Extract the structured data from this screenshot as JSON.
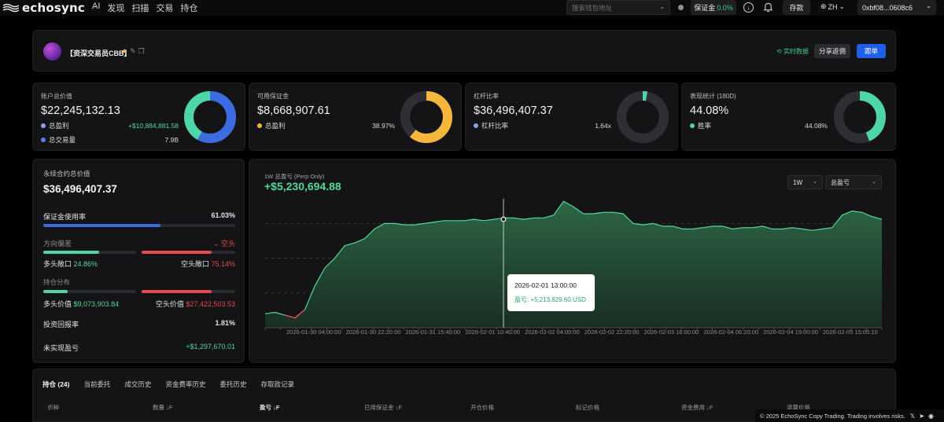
{
  "nav": {
    "brand": "echosync",
    "links": [
      "AI",
      "发现",
      "扫描",
      "交易",
      "持仓"
    ],
    "search_placeholder": "搜索钱包地址",
    "margin_label": "保证金",
    "margin_value": "0.0%",
    "deposit_label": "存款",
    "lang": "ZH",
    "wallet": "0xbf08...0608c6"
  },
  "profile": {
    "name": "【资深交易员CBB】",
    "realtime_label": "实时数据",
    "share_label": "分享返佣",
    "follow_label": "跟单"
  },
  "stats": [
    {
      "label": "账户总价值",
      "value": "$22,245,132.13",
      "rows": [
        {
          "k": "总盈利",
          "v": "+$10,884,881.58",
          "color": "#8ea3f0",
          "vcolor": "#4fd99a"
        },
        {
          "k": "总交易量",
          "v": "7.9B",
          "color": "#5b7cf0",
          "vcolor": "#e3e3e6"
        }
      ],
      "donut": {
        "colors": [
          "#3d6be0",
          "#4fd6a8"
        ],
        "fractions": [
          0.58,
          0.42
        ]
      }
    },
    {
      "label": "可用保证金",
      "value": "$8,668,907.61",
      "rows": [
        {
          "k": "总盈利",
          "v": "38.97%",
          "color": "#f5b73b",
          "vcolor": "#e3e3e6"
        }
      ],
      "donut": {
        "colors": [
          "#f5b73b",
          "#2e2f34"
        ],
        "fractions": [
          0.61,
          0.39
        ]
      }
    },
    {
      "label": "杠杆比率",
      "value": "$36,496,407.37",
      "rows": [
        {
          "k": "杠杆比率",
          "v": "1.64x",
          "color": "#8ea3f0",
          "vcolor": "#e3e3e6"
        }
      ],
      "donut": {
        "colors": [
          "#4fd6a8",
          "#2e2f34"
        ],
        "fractions": [
          0.03,
          0.97
        ]
      }
    },
    {
      "label": "表现统计 (180D)",
      "value": "44.08%",
      "rows": [
        {
          "k": "胜率",
          "v": "44.08%",
          "color": "#4fd6a8",
          "vcolor": "#e3e3e6"
        }
      ],
      "donut": {
        "colors": [
          "#4fd6a8",
          "#2e2f34"
        ],
        "fractions": [
          0.44,
          0.56
        ]
      }
    }
  ],
  "left": {
    "title": "永续合约总价值",
    "value": "$36,496,407.37",
    "margin_usage_label": "保证金使用率",
    "margin_usage_value": "61.03%",
    "margin_usage_fraction": 0.6103,
    "bias_label": "方向偏差",
    "bias_value": "空头",
    "long_exposure_label": "多头敞口",
    "long_exposure_value": "24.86%",
    "short_exposure_label": "空头敞口",
    "short_exposure_value": "75.14%",
    "long_fraction": 0.2486,
    "short_fraction": 0.7514,
    "dist_label": "持仓分布",
    "long_value_label": "多头价值",
    "long_value": "$9,073,903.84",
    "short_value_label": "空头价值",
    "short_value": "$27,422,503.53",
    "roi_label": "投资回报率",
    "roi_value": "1.81%",
    "upnl_label": "未实现盈亏",
    "upnl_value": "+$1,297,670.01",
    "colors": {
      "blue": "#3d6be0",
      "green": "#4fd6a8",
      "red": "#e5484d",
      "track": "#2a2b30"
    }
  },
  "chart": {
    "subtitle": "1W 总盈亏 (Perp Only)",
    "value": "+$5,230,694.88",
    "range_option": "1W",
    "metric_option": "总盈亏",
    "tooltip_time": "2026-02-01 13:00:00",
    "tooltip_value": "盈亏: +5,213,629.60 USD"
  },
  "chart_data": {
    "type": "area",
    "x_tick_labels": [
      "2026-01-30 04:00:00",
      "2026-01-30 22:20:00",
      "2026-01-31 15:40:00",
      "2026-02-01 10:40:00",
      "2026-02-02 04:00:00",
      "2026-02-02 22:20:00",
      "2026-02-03 16:00:00",
      "2026-02-04 06:20:00",
      "2026-02-04 19:00:00",
      "2026-02-05 15:05:10"
    ],
    "values": [
      -1.5,
      -1.4,
      -1.6,
      -1.8,
      -1.2,
      0.5,
      1.8,
      2.5,
      3.4,
      3.6,
      3.9,
      4.6,
      5.0,
      5.0,
      4.9,
      4.9,
      5.0,
      5.1,
      5.2,
      5.2,
      5.2,
      5.3,
      5.2,
      5.3,
      5.4,
      5.4,
      5.3,
      5.4,
      5.4,
      5.6,
      6.6,
      6.2,
      5.7,
      5.7,
      5.8,
      5.8,
      5.7,
      5.0,
      4.9,
      5.0,
      4.8,
      4.8,
      4.6,
      4.6,
      4.7,
      4.8,
      4.8,
      4.6,
      4.7,
      4.7,
      4.8,
      4.6,
      4.6,
      4.7,
      4.6,
      4.5,
      4.6,
      4.7,
      5.6,
      5.9,
      5.8,
      5.5,
      5.3
    ],
    "highlight_index": 23,
    "color": "#4fd99a",
    "grid": true
  },
  "bottom": {
    "tabs": [
      "持仓 (24)",
      "当前委托",
      "成交历史",
      "资金费率历史",
      "委托历史",
      "存取款记录"
    ],
    "columns": [
      "币种",
      "数量 ↓F",
      "盈亏 ↓F",
      "已用保证金 ↓F",
      "开仓价格",
      "标记价格",
      "资金费用 ↓F",
      "清算价格"
    ]
  },
  "footer": {
    "text": "© 2025 EchoSync Copy Trading. Trading involves risks."
  }
}
